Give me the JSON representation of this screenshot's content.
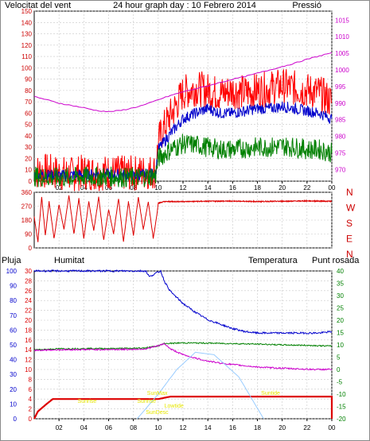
{
  "colors": {
    "wind": "#ff0000",
    "wind_avg": "#0000cc",
    "wind_low": "#008000",
    "pressure": "#cc00cc",
    "direction": "#dd0000",
    "rain": "#dd0000",
    "humidity": "#0000cc",
    "temperature": "#008000",
    "dewpoint": "#cc00cc",
    "sun": "#99ccff",
    "event_label": "#e6e600",
    "grid": "#c8c8c8"
  },
  "chart_data": [
    {
      "id": "wind-pressure",
      "type": "line",
      "title": "24 hour graph day : 10 Febrero 2014",
      "left_label": "Velocitat del vent",
      "right_label": "Pressió",
      "x_ticks": [
        "02",
        "04",
        "06",
        "08",
        "10",
        "12",
        "14",
        "16",
        "18",
        "20",
        "22",
        "00"
      ],
      "x_tick_hours": [
        2,
        4,
        6,
        8,
        10,
        12,
        14,
        16,
        18,
        20,
        22,
        24
      ],
      "x_range": [
        0,
        24
      ],
      "y_left_ticks": [
        0,
        10,
        20,
        30,
        40,
        50,
        60,
        70,
        80,
        90,
        100,
        110,
        120,
        130,
        140,
        150
      ],
      "y_left_range": [
        0,
        150
      ],
      "y_right_ticks": [
        970,
        975,
        980,
        985,
        990,
        995,
        1000,
        1005,
        1010,
        1015
      ],
      "y_right_range": [
        966.5,
        1017.7
      ],
      "series": [
        {
          "key": "wind_gust",
          "color_key": "wind",
          "axis": "left",
          "points": [
            [
              0,
              8
            ],
            [
              1,
              9
            ],
            [
              2,
              7
            ],
            [
              3,
              6
            ],
            [
              4,
              8
            ],
            [
              5,
              7
            ],
            [
              6,
              8
            ],
            [
              7,
              7
            ],
            [
              8,
              7
            ],
            [
              9,
              8
            ],
            [
              9.8,
              9
            ],
            [
              10,
              35
            ],
            [
              10.5,
              48
            ],
            [
              11,
              58
            ],
            [
              12,
              78
            ],
            [
              13,
              82
            ],
            [
              14,
              80
            ],
            [
              15,
              77
            ],
            [
              16,
              80
            ],
            [
              17,
              78
            ],
            [
              18,
              80
            ],
            [
              19,
              82
            ],
            [
              20,
              84
            ],
            [
              21,
              82
            ],
            [
              22,
              80
            ],
            [
              23,
              78
            ],
            [
              24,
              70
            ]
          ]
        },
        {
          "key": "wind_avg",
          "color_key": "wind_avg",
          "axis": "left",
          "points": [
            [
              0,
              6
            ],
            [
              2,
              5
            ],
            [
              4,
              6
            ],
            [
              6,
              6
            ],
            [
              8,
              5
            ],
            [
              9.8,
              7
            ],
            [
              10,
              28
            ],
            [
              11,
              42
            ],
            [
              12,
              55
            ],
            [
              13,
              60
            ],
            [
              14,
              64
            ],
            [
              15,
              60
            ],
            [
              16,
              60
            ],
            [
              17,
              62
            ],
            [
              18,
              64
            ],
            [
              19,
              64
            ],
            [
              20,
              66
            ],
            [
              21,
              64
            ],
            [
              22,
              62
            ],
            [
              23,
              60
            ],
            [
              24,
              55
            ]
          ]
        },
        {
          "key": "wind_low",
          "color_key": "wind_low",
          "axis": "left",
          "points": [
            [
              0,
              4
            ],
            [
              2,
              3
            ],
            [
              4,
              4
            ],
            [
              6,
              4
            ],
            [
              8,
              3
            ],
            [
              9.8,
              5
            ],
            [
              10,
              20
            ],
            [
              11,
              28
            ],
            [
              12,
              33
            ],
            [
              13,
              32
            ],
            [
              14,
              30
            ],
            [
              15,
              28
            ],
            [
              16,
              28
            ],
            [
              17,
              29
            ],
            [
              18,
              30
            ],
            [
              19,
              30
            ],
            [
              20,
              31
            ],
            [
              21,
              30
            ],
            [
              22,
              28
            ],
            [
              23,
              28
            ],
            [
              24,
              25
            ]
          ]
        },
        {
          "key": "pressure",
          "color_key": "pressure",
          "axis": "right",
          "points": [
            [
              0,
              992
            ],
            [
              1,
              991
            ],
            [
              2,
              990
            ],
            [
              3,
              989.3
            ],
            [
              4,
              988.6
            ],
            [
              5,
              987.8
            ],
            [
              6,
              987.4
            ],
            [
              7,
              987.8
            ],
            [
              8,
              988.6
            ],
            [
              9,
              989.6
            ],
            [
              10,
              991
            ],
            [
              11,
              992.3
            ],
            [
              12,
              993.4
            ],
            [
              13,
              994.3
            ],
            [
              14,
              995.2
            ],
            [
              15,
              996.2
            ],
            [
              16,
              997.2
            ],
            [
              17,
              998
            ],
            [
              18,
              999
            ],
            [
              19,
              1000
            ],
            [
              20,
              1001
            ],
            [
              21,
              1002
            ],
            [
              22,
              1003.2
            ],
            [
              23,
              1004.2
            ],
            [
              24,
              1005.2
            ]
          ]
        }
      ]
    },
    {
      "id": "wind-direction",
      "type": "line",
      "x_range": [
        0,
        24
      ],
      "y_left_ticks": [
        0,
        45,
        90,
        135,
        180,
        225,
        270,
        315,
        360
      ],
      "y_left_range": [
        0,
        360
      ],
      "compass_labels": [
        "N",
        "W",
        "S",
        "E",
        "N"
      ],
      "series": [
        {
          "key": "direction",
          "color_key": "direction",
          "axis": "left",
          "points": [
            [
              0,
              200
            ],
            [
              0.3,
              40
            ],
            [
              0.6,
              330
            ],
            [
              0.9,
              80
            ],
            [
              1.2,
              300
            ],
            [
              1.6,
              60
            ],
            [
              2,
              280
            ],
            [
              2.4,
              120
            ],
            [
              2.8,
              340
            ],
            [
              3.2,
              90
            ],
            [
              3.6,
              320
            ],
            [
              4,
              60
            ],
            [
              4.4,
              300
            ],
            [
              4.8,
              110
            ],
            [
              5.2,
              330
            ],
            [
              5.6,
              50
            ],
            [
              6,
              250
            ],
            [
              6.4,
              90
            ],
            [
              6.8,
              320
            ],
            [
              7.2,
              40
            ],
            [
              7.6,
              300
            ],
            [
              8,
              80
            ],
            [
              8.4,
              330
            ],
            [
              8.8,
              120
            ],
            [
              9.2,
              300
            ],
            [
              9.6,
              60
            ],
            [
              9.9,
              220
            ],
            [
              10,
              290
            ],
            [
              10.5,
              300
            ],
            [
              12,
              300
            ],
            [
              14,
              302
            ],
            [
              16,
              303
            ],
            [
              18,
              300
            ],
            [
              20,
              302
            ],
            [
              22,
              304
            ],
            [
              24,
              302
            ]
          ]
        }
      ]
    },
    {
      "id": "rain-humidity-temperature",
      "type": "line",
      "labels": {
        "rain": "Pluja",
        "humidity": "Humitat",
        "temperature": "Temperatura",
        "dewpoint": "Punt rosada"
      },
      "x_range": [
        0,
        24
      ],
      "x_ticks": [
        "02",
        "04",
        "06",
        "08",
        "10",
        "12",
        "14",
        "16",
        "18",
        "20",
        "22",
        "00"
      ],
      "x_tick_hours": [
        2,
        4,
        6,
        8,
        10,
        12,
        14,
        16,
        18,
        20,
        22,
        24
      ],
      "y_rain_ticks": [
        0,
        2,
        4,
        6,
        8,
        10,
        12,
        14,
        16,
        18,
        20,
        22,
        24,
        26,
        28,
        30
      ],
      "y_rain_range": [
        0,
        30
      ],
      "y_hum_ticks": [
        0,
        10,
        20,
        30,
        40,
        50,
        60,
        70,
        80,
        90,
        100
      ],
      "y_hum_range": [
        0,
        100
      ],
      "y_temp_ticks": [
        -20,
        -15,
        -10,
        -5,
        0,
        5,
        10,
        15,
        20,
        25,
        30,
        35,
        40
      ],
      "y_temp_range": [
        -20,
        40
      ],
      "series": [
        {
          "key": "rain",
          "color_key": "rain",
          "axis": "rain",
          "points": [
            [
              0,
              0
            ],
            [
              0.3,
              1.5
            ],
            [
              1,
              3
            ],
            [
              1.5,
              4
            ],
            [
              6,
              4
            ],
            [
              10,
              4
            ],
            [
              11,
              4.5
            ],
            [
              24,
              4.5
            ],
            [
              24,
              0
            ]
          ]
        },
        {
          "key": "humidity",
          "color_key": "humidity",
          "axis": "hum",
          "points": [
            [
              0,
              100
            ],
            [
              9,
              100
            ],
            [
              9.3,
              96
            ],
            [
              9.7,
              98
            ],
            [
              10.2,
              100
            ],
            [
              10.5,
              93
            ],
            [
              11,
              86
            ],
            [
              12,
              78
            ],
            [
              13,
              72
            ],
            [
              14,
              67
            ],
            [
              15,
              64
            ],
            [
              16,
              61
            ],
            [
              17,
              59
            ],
            [
              18,
              58
            ],
            [
              19,
              58
            ],
            [
              20,
              58
            ],
            [
              21,
              58
            ],
            [
              22,
              58
            ],
            [
              23,
              58
            ],
            [
              24,
              59
            ]
          ]
        },
        {
          "key": "temperature",
          "color_key": "temperature",
          "axis": "temp",
          "points": [
            [
              0,
              8
            ],
            [
              2,
              8.4
            ],
            [
              4,
              8.5
            ],
            [
              6,
              8.5
            ],
            [
              8,
              8.6
            ],
            [
              9,
              8.8
            ],
            [
              10,
              9.6
            ],
            [
              10.5,
              10.5
            ],
            [
              11,
              10.6
            ],
            [
              12,
              10.8
            ],
            [
              14,
              10.7
            ],
            [
              16,
              10.5
            ],
            [
              18,
              10.3
            ],
            [
              20,
              10
            ],
            [
              22,
              9.8
            ],
            [
              24,
              9.5
            ]
          ]
        },
        {
          "key": "dewpoint",
          "color_key": "dewpoint",
          "axis": "temp",
          "points": [
            [
              0,
              7.8
            ],
            [
              2,
              8
            ],
            [
              4,
              8.1
            ],
            [
              6,
              8.1
            ],
            [
              8,
              8.2
            ],
            [
              9,
              8.4
            ],
            [
              10,
              9.6
            ],
            [
              10.5,
              10.5
            ],
            [
              11,
              8.3
            ],
            [
              12,
              6
            ],
            [
              13,
              4.6
            ],
            [
              14,
              3.4
            ],
            [
              15,
              2.6
            ],
            [
              16,
              2
            ],
            [
              17,
              1.5
            ],
            [
              18,
              1
            ],
            [
              19,
              0.7
            ],
            [
              20,
              0.5
            ],
            [
              21,
              0.3
            ],
            [
              22,
              0.1
            ],
            [
              23,
              0
            ],
            [
              24,
              0.1
            ]
          ]
        },
        {
          "key": "sun",
          "color_key": "sun",
          "axis": "temp",
          "points": [
            [
              8.3,
              -20
            ],
            [
              10,
              -10
            ],
            [
              11.5,
              0
            ],
            [
              13,
              7
            ],
            [
              14.5,
              6
            ],
            [
              16.5,
              -3
            ],
            [
              18.5,
              -20
            ]
          ]
        }
      ],
      "annotations": [
        {
          "text": "Sunrise",
          "hour": 8.3
        },
        {
          "text": "SunDesc",
          "hour": 9.0
        },
        {
          "text": "SunMax",
          "hour": 9.1
        },
        {
          "text": "Sunrise",
          "hour": 3.5
        },
        {
          "text": "Lowtide",
          "hour": 10.5
        },
        {
          "text": "Suntide",
          "hour": 18.3
        }
      ]
    }
  ]
}
